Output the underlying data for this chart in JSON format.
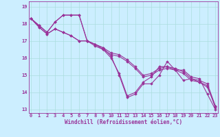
{
  "xlabel": "Windchill (Refroidissement éolien,°C)",
  "background_color": "#cceeff",
  "grid_color": "#aadddd",
  "line_color": "#993399",
  "ylim": [
    12.8,
    19.3
  ],
  "yticks": [
    13,
    14,
    15,
    16,
    17,
    18,
    19
  ],
  "xticks": [
    0,
    1,
    2,
    3,
    4,
    5,
    6,
    7,
    8,
    9,
    10,
    11,
    12,
    13,
    14,
    15,
    16,
    17,
    18,
    19,
    20,
    21,
    22,
    23
  ],
  "lines": [
    [
      18.3,
      17.9,
      17.5,
      18.1,
      18.5,
      18.5,
      18.5,
      17.0,
      16.8,
      16.6,
      16.1,
      15.0,
      13.7,
      13.9,
      14.5,
      14.5,
      15.0,
      15.8,
      15.3,
      15.3,
      14.9,
      14.8,
      13.9,
      13.0
    ],
    [
      18.3,
      17.9,
      17.5,
      18.1,
      18.5,
      18.5,
      18.5,
      17.0,
      16.7,
      16.5,
      16.0,
      15.1,
      13.8,
      14.0,
      14.6,
      14.9,
      15.5,
      15.5,
      15.3,
      14.7,
      14.8,
      14.6,
      14.3,
      13.2
    ],
    [
      18.3,
      17.8,
      17.4,
      17.7,
      17.5,
      17.3,
      17.0,
      17.0,
      16.8,
      16.6,
      16.3,
      16.2,
      15.9,
      15.5,
      15.0,
      15.1,
      15.4,
      15.5,
      15.4,
      15.2,
      14.8,
      14.7,
      14.5,
      13.2
    ],
    [
      18.3,
      17.8,
      17.4,
      17.7,
      17.5,
      17.3,
      17.0,
      17.0,
      16.8,
      16.5,
      16.2,
      16.1,
      15.8,
      15.4,
      14.9,
      15.0,
      15.3,
      15.4,
      15.3,
      15.1,
      14.7,
      14.6,
      14.4,
      13.1
    ]
  ],
  "marker": "D",
  "marker_size": 1.8,
  "line_width": 0.8,
  "font_color": "#993399",
  "tick_fontsize": 5.0,
  "xlabel_fontsize": 5.5
}
